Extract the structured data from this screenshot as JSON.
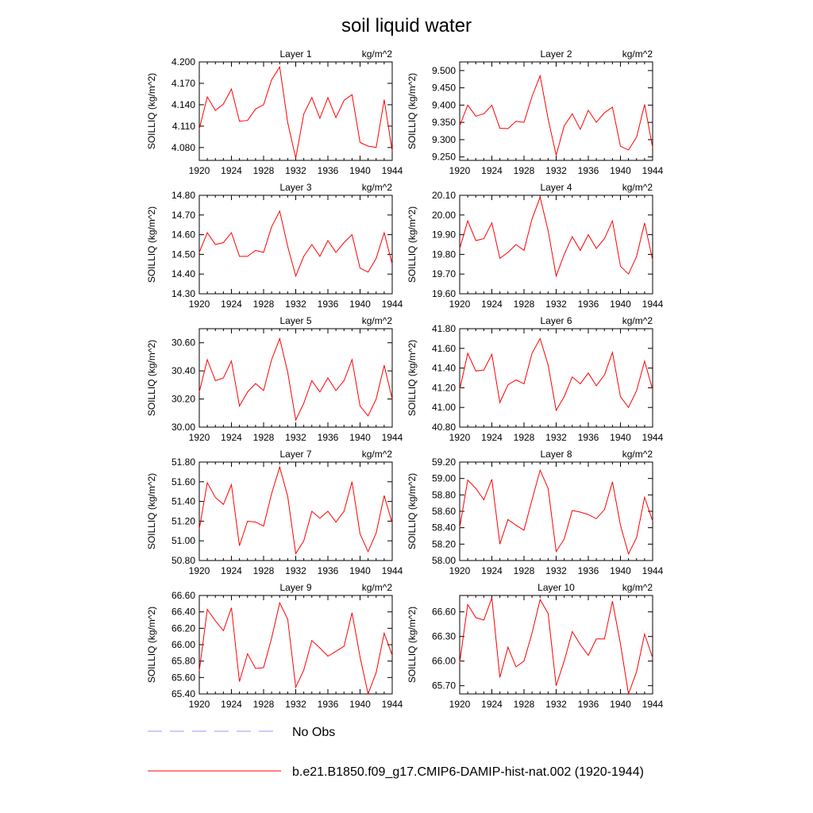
{
  "title": "soil liquid water",
  "ylabel": "SOILLIQ  (kg/m^2)",
  "units": "kg/m^2",
  "colors": {
    "model": "#ff0000",
    "obs": "#9999ff",
    "axis": "#000000"
  },
  "legend": [
    {
      "label": "No Obs",
      "style": "dashed",
      "color": "#9999ff"
    },
    {
      "label": "b.e21.B1850.f09_g17.CMIP6-DAMIP-hist-nat.002 (1920-1944)",
      "style": "solid",
      "color": "#ff0000"
    }
  ],
  "chart_data": [
    {
      "type": "line",
      "title": "Layer 1",
      "units": "kg/m^2",
      "xlim": [
        1920,
        1944
      ],
      "xticks": [
        "1920",
        "1924",
        "1928",
        "1932",
        "1936",
        "1940",
        "1944"
      ],
      "ylim": [
        4.062,
        4.2
      ],
      "yticks": [
        "4.080",
        "4.110",
        "4.140",
        "4.170",
        "4.200"
      ],
      "ytick_values": [
        4.08,
        4.11,
        4.14,
        4.17,
        4.2
      ],
      "series": [
        {
          "x": [
            1920,
            1921,
            1922,
            1923,
            1924,
            1925,
            1926,
            1927,
            1928,
            1929,
            1930,
            1931,
            1932,
            1933,
            1934,
            1935,
            1936,
            1937,
            1938,
            1939,
            1940,
            1941,
            1942,
            1943,
            1944
          ],
          "values": [
            4.106,
            4.151,
            4.132,
            4.141,
            4.162,
            4.117,
            4.118,
            4.134,
            4.14,
            4.175,
            4.193,
            4.115,
            4.065,
            4.127,
            4.15,
            4.121,
            4.15,
            4.122,
            4.146,
            4.154,
            4.087,
            4.082,
            4.08,
            4.147,
            4.075
          ]
        }
      ]
    },
    {
      "type": "line",
      "title": "Layer 2",
      "units": "kg/m^2",
      "xlim": [
        1920,
        1944
      ],
      "xticks": [
        "1920",
        "1924",
        "1928",
        "1932",
        "1936",
        "1940",
        "1944"
      ],
      "ylim": [
        9.24,
        9.525
      ],
      "yticks": [
        "9.250",
        "9.300",
        "9.350",
        "9.400",
        "9.450",
        "9.500"
      ],
      "ytick_values": [
        9.25,
        9.3,
        9.35,
        9.4,
        9.45,
        9.5
      ],
      "series": [
        {
          "x": [
            1920,
            1921,
            1922,
            1923,
            1924,
            1925,
            1926,
            1927,
            1928,
            1929,
            1930,
            1931,
            1932,
            1933,
            1934,
            1935,
            1936,
            1937,
            1938,
            1939,
            1940,
            1941,
            1942,
            1943,
            1944
          ],
          "values": [
            9.34,
            9.4,
            9.368,
            9.375,
            9.4,
            9.333,
            9.332,
            9.353,
            9.35,
            9.425,
            9.485,
            9.36,
            9.255,
            9.34,
            9.375,
            9.33,
            9.385,
            9.35,
            9.378,
            9.394,
            9.281,
            9.27,
            9.307,
            9.402,
            9.277
          ]
        }
      ]
    },
    {
      "type": "line",
      "title": "Layer 3",
      "units": "kg/m^2",
      "xlim": [
        1920,
        1944
      ],
      "xticks": [
        "1920",
        "1924",
        "1928",
        "1932",
        "1936",
        "1940",
        "1944"
      ],
      "ylim": [
        14.3,
        14.8
      ],
      "yticks": [
        "14.30",
        "14.40",
        "14.50",
        "14.60",
        "14.70",
        "14.80"
      ],
      "ytick_values": [
        14.3,
        14.4,
        14.5,
        14.6,
        14.7,
        14.8
      ],
      "series": [
        {
          "x": [
            1920,
            1921,
            1922,
            1923,
            1924,
            1925,
            1926,
            1927,
            1928,
            1929,
            1930,
            1931,
            1932,
            1933,
            1934,
            1935,
            1936,
            1937,
            1938,
            1939,
            1940,
            1941,
            1942,
            1943,
            1944
          ],
          "values": [
            14.51,
            14.61,
            14.55,
            14.56,
            14.61,
            14.49,
            14.49,
            14.52,
            14.51,
            14.64,
            14.72,
            14.54,
            14.39,
            14.49,
            14.55,
            14.49,
            14.57,
            14.51,
            14.56,
            14.6,
            14.43,
            14.41,
            14.48,
            14.61,
            14.45
          ]
        }
      ]
    },
    {
      "type": "line",
      "title": "Layer 4",
      "units": "kg/m^2",
      "xlim": [
        1920,
        1944
      ],
      "xticks": [
        "1920",
        "1924",
        "1928",
        "1932",
        "1936",
        "1940",
        "1944"
      ],
      "ylim": [
        19.6,
        20.1
      ],
      "yticks": [
        "19.60",
        "19.70",
        "19.80",
        "19.90",
        "20.00",
        "20.10"
      ],
      "ytick_values": [
        19.6,
        19.7,
        19.8,
        19.9,
        20.0,
        20.1
      ],
      "series": [
        {
          "x": [
            1920,
            1921,
            1922,
            1923,
            1924,
            1925,
            1926,
            1927,
            1928,
            1929,
            1930,
            1931,
            1932,
            1933,
            1934,
            1935,
            1936,
            1937,
            1938,
            1939,
            1940,
            1941,
            1942,
            1943,
            1944
          ],
          "values": [
            19.83,
            19.97,
            19.87,
            19.88,
            19.96,
            19.78,
            19.81,
            19.85,
            19.82,
            19.98,
            20.09,
            19.92,
            19.69,
            19.8,
            19.89,
            19.82,
            19.9,
            19.83,
            19.88,
            19.97,
            19.74,
            19.7,
            19.79,
            19.96,
            19.77
          ]
        }
      ]
    },
    {
      "type": "line",
      "title": "Layer 5",
      "units": "kg/m^2",
      "xlim": [
        1920,
        1944
      ],
      "xticks": [
        "1920",
        "1924",
        "1928",
        "1932",
        "1936",
        "1940",
        "1944"
      ],
      "ylim": [
        30.0,
        30.7
      ],
      "yticks": [
        "30.00",
        "30.20",
        "30.40",
        "30.60"
      ],
      "ytick_values": [
        30.0,
        30.2,
        30.4,
        30.6
      ],
      "series": [
        {
          "x": [
            1920,
            1921,
            1922,
            1923,
            1924,
            1925,
            1926,
            1927,
            1928,
            1929,
            1930,
            1931,
            1932,
            1933,
            1934,
            1935,
            1936,
            1937,
            1938,
            1939,
            1940,
            1941,
            1942,
            1943,
            1944
          ],
          "values": [
            30.25,
            30.48,
            30.33,
            30.35,
            30.47,
            30.15,
            30.25,
            30.31,
            30.26,
            30.48,
            30.63,
            30.39,
            30.05,
            30.17,
            30.33,
            30.25,
            30.35,
            30.26,
            30.33,
            30.48,
            30.15,
            30.08,
            30.2,
            30.44,
            30.2
          ]
        }
      ]
    },
    {
      "type": "line",
      "title": "Layer 6",
      "units": "kg/m^2",
      "xlim": [
        1920,
        1944
      ],
      "xticks": [
        "1920",
        "1924",
        "1928",
        "1932",
        "1936",
        "1940",
        "1944"
      ],
      "ylim": [
        40.8,
        41.8
      ],
      "yticks": [
        "40.80",
        "41.00",
        "41.20",
        "41.40",
        "41.60",
        "41.80"
      ],
      "ytick_values": [
        40.8,
        41.0,
        41.2,
        41.4,
        41.6,
        41.8
      ],
      "series": [
        {
          "x": [
            1920,
            1921,
            1922,
            1923,
            1924,
            1925,
            1926,
            1927,
            1928,
            1929,
            1930,
            1931,
            1932,
            1933,
            1934,
            1935,
            1936,
            1937,
            1938,
            1939,
            1940,
            1941,
            1942,
            1943,
            1944
          ],
          "values": [
            41.18,
            41.55,
            41.37,
            41.38,
            41.54,
            41.05,
            41.23,
            41.28,
            41.24,
            41.55,
            41.7,
            41.43,
            40.97,
            41.11,
            41.31,
            41.24,
            41.35,
            41.22,
            41.33,
            41.56,
            41.11,
            41.0,
            41.17,
            41.47,
            41.18
          ]
        }
      ]
    },
    {
      "type": "line",
      "title": "Layer 7",
      "units": "kg/m^2",
      "xlim": [
        1920,
        1944
      ],
      "xticks": [
        "1920",
        "1924",
        "1928",
        "1932",
        "1936",
        "1940",
        "1944"
      ],
      "ylim": [
        50.8,
        51.8
      ],
      "yticks": [
        "50.80",
        "51.00",
        "51.20",
        "51.40",
        "51.60",
        "51.80"
      ],
      "ytick_values": [
        50.8,
        51.0,
        51.2,
        51.4,
        51.6,
        51.8
      ],
      "series": [
        {
          "x": [
            1920,
            1921,
            1922,
            1923,
            1924,
            1925,
            1926,
            1927,
            1928,
            1929,
            1930,
            1931,
            1932,
            1933,
            1934,
            1935,
            1936,
            1937,
            1938,
            1939,
            1940,
            1941,
            1942,
            1943,
            1944
          ],
          "values": [
            51.12,
            51.59,
            51.44,
            51.37,
            51.57,
            50.95,
            51.2,
            51.19,
            51.15,
            51.48,
            51.75,
            51.45,
            50.87,
            51.0,
            51.3,
            51.23,
            51.3,
            51.19,
            51.3,
            51.6,
            51.07,
            50.89,
            51.08,
            51.46,
            51.18
          ]
        }
      ]
    },
    {
      "type": "line",
      "title": "Layer 8",
      "units": "kg/m^2",
      "xlim": [
        1920,
        1944
      ],
      "xticks": [
        "1920",
        "1924",
        "1928",
        "1932",
        "1936",
        "1940",
        "1944"
      ],
      "ylim": [
        58.0,
        59.2
      ],
      "yticks": [
        "58.00",
        "58.20",
        "58.40",
        "58.60",
        "58.80",
        "59.00",
        "59.20"
      ],
      "ytick_values": [
        58.0,
        58.2,
        58.4,
        58.6,
        58.8,
        59.0,
        59.2
      ],
      "series": [
        {
          "x": [
            1920,
            1921,
            1922,
            1923,
            1924,
            1925,
            1926,
            1927,
            1928,
            1929,
            1930,
            1931,
            1932,
            1933,
            1934,
            1935,
            1936,
            1937,
            1938,
            1939,
            1940,
            1941,
            1942,
            1943,
            1944
          ],
          "values": [
            58.4,
            58.98,
            58.88,
            58.74,
            58.99,
            58.2,
            58.5,
            58.43,
            58.37,
            58.74,
            59.1,
            58.88,
            58.11,
            58.26,
            58.61,
            58.59,
            58.56,
            58.51,
            58.62,
            58.96,
            58.43,
            58.08,
            58.28,
            58.77,
            58.48
          ]
        }
      ]
    },
    {
      "type": "line",
      "title": "Layer 9",
      "units": "kg/m^2",
      "xlim": [
        1920,
        1944
      ],
      "xticks": [
        "1920",
        "1924",
        "1928",
        "1932",
        "1936",
        "1940",
        "1944"
      ],
      "ylim": [
        65.4,
        66.6
      ],
      "yticks": [
        "65.40",
        "65.60",
        "65.80",
        "66.00",
        "66.20",
        "66.40",
        "66.60"
      ],
      "ytick_values": [
        65.4,
        65.6,
        65.8,
        66.0,
        66.2,
        66.4,
        66.6
      ],
      "series": [
        {
          "x": [
            1920,
            1921,
            1922,
            1923,
            1924,
            1925,
            1926,
            1927,
            1928,
            1929,
            1930,
            1931,
            1932,
            1933,
            1934,
            1935,
            1936,
            1937,
            1938,
            1939,
            1940,
            1941,
            1942,
            1943,
            1944
          ],
          "values": [
            65.68,
            66.43,
            66.29,
            66.17,
            66.45,
            65.55,
            65.89,
            65.71,
            65.72,
            66.08,
            66.51,
            66.31,
            65.48,
            65.69,
            66.05,
            65.96,
            65.86,
            65.92,
            65.98,
            66.39,
            65.85,
            65.4,
            65.66,
            66.14,
            65.87
          ]
        }
      ]
    },
    {
      "type": "line",
      "title": "Layer 10",
      "units": "kg/m^2",
      "xlim": [
        1920,
        1944
      ],
      "xticks": [
        "1920",
        "1924",
        "1928",
        "1932",
        "1936",
        "1940",
        "1944"
      ],
      "ylim": [
        65.6,
        66.8
      ],
      "yticks": [
        "65.70",
        "66.00",
        "66.30",
        "66.60"
      ],
      "ytick_values": [
        65.7,
        66.0,
        66.3,
        66.6
      ],
      "series": [
        {
          "x": [
            1920,
            1921,
            1922,
            1923,
            1924,
            1925,
            1926,
            1927,
            1928,
            1929,
            1930,
            1931,
            1932,
            1933,
            1934,
            1935,
            1936,
            1937,
            1938,
            1939,
            1940,
            1941,
            1942,
            1943,
            1944
          ],
          "values": [
            65.98,
            66.69,
            66.53,
            66.5,
            66.77,
            65.8,
            66.17,
            65.93,
            66.0,
            66.34,
            66.75,
            66.58,
            65.7,
            66.0,
            66.36,
            66.2,
            66.07,
            66.27,
            66.27,
            66.73,
            66.21,
            65.6,
            65.87,
            66.33,
            66.04
          ]
        }
      ]
    }
  ]
}
